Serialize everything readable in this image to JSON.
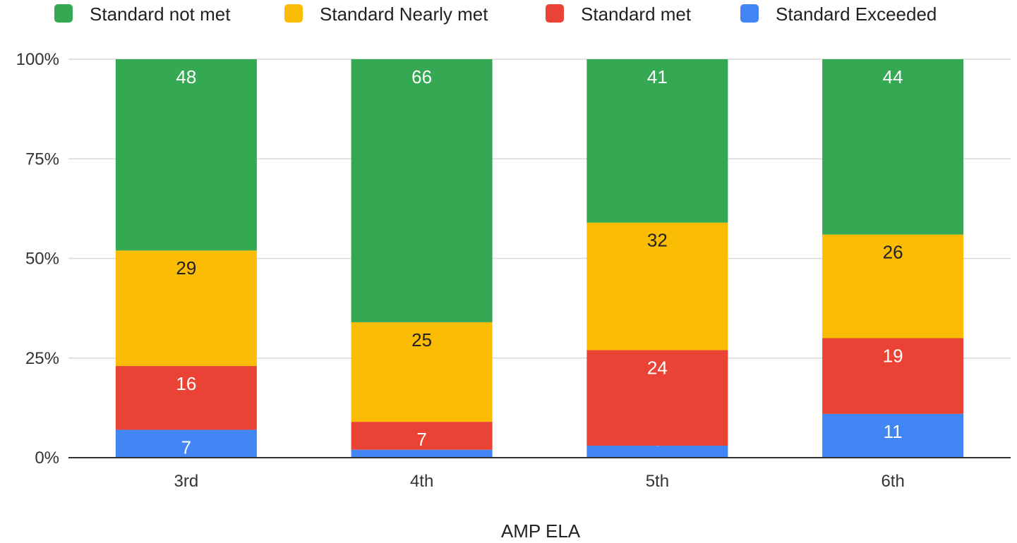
{
  "chart_data": {
    "type": "bar",
    "stacked": "percent",
    "categories": [
      "3rd",
      "4th",
      "5th",
      "6th"
    ],
    "series": [
      {
        "name": "Standard Exceeded",
        "color": "#4285F4",
        "values": [
          7,
          2,
          3,
          11
        ],
        "label_color": "#ffffff"
      },
      {
        "name": "Standard met",
        "color": "#EA4335",
        "values": [
          16,
          7,
          24,
          19
        ],
        "label_color": "#ffffff"
      },
      {
        "name": "Standard Nearly met",
        "color": "#FBBC04",
        "values": [
          29,
          25,
          32,
          26
        ],
        "label_color": "#222222"
      },
      {
        "name": "Standard not met",
        "color": "#34A853",
        "values": [
          48,
          66,
          41,
          44
        ],
        "label_color": "#ffffff"
      }
    ],
    "legend_order": [
      "Standard not met",
      "Standard Nearly met",
      "Standard met",
      "Standard Exceeded"
    ],
    "legend_position": "top",
    "y_ticks": [
      "0%",
      "25%",
      "50%",
      "75%",
      "100%"
    ],
    "ylim": [
      0,
      100
    ],
    "xlabel": "AMP ELA",
    "ylabel": "",
    "grid": true
  }
}
